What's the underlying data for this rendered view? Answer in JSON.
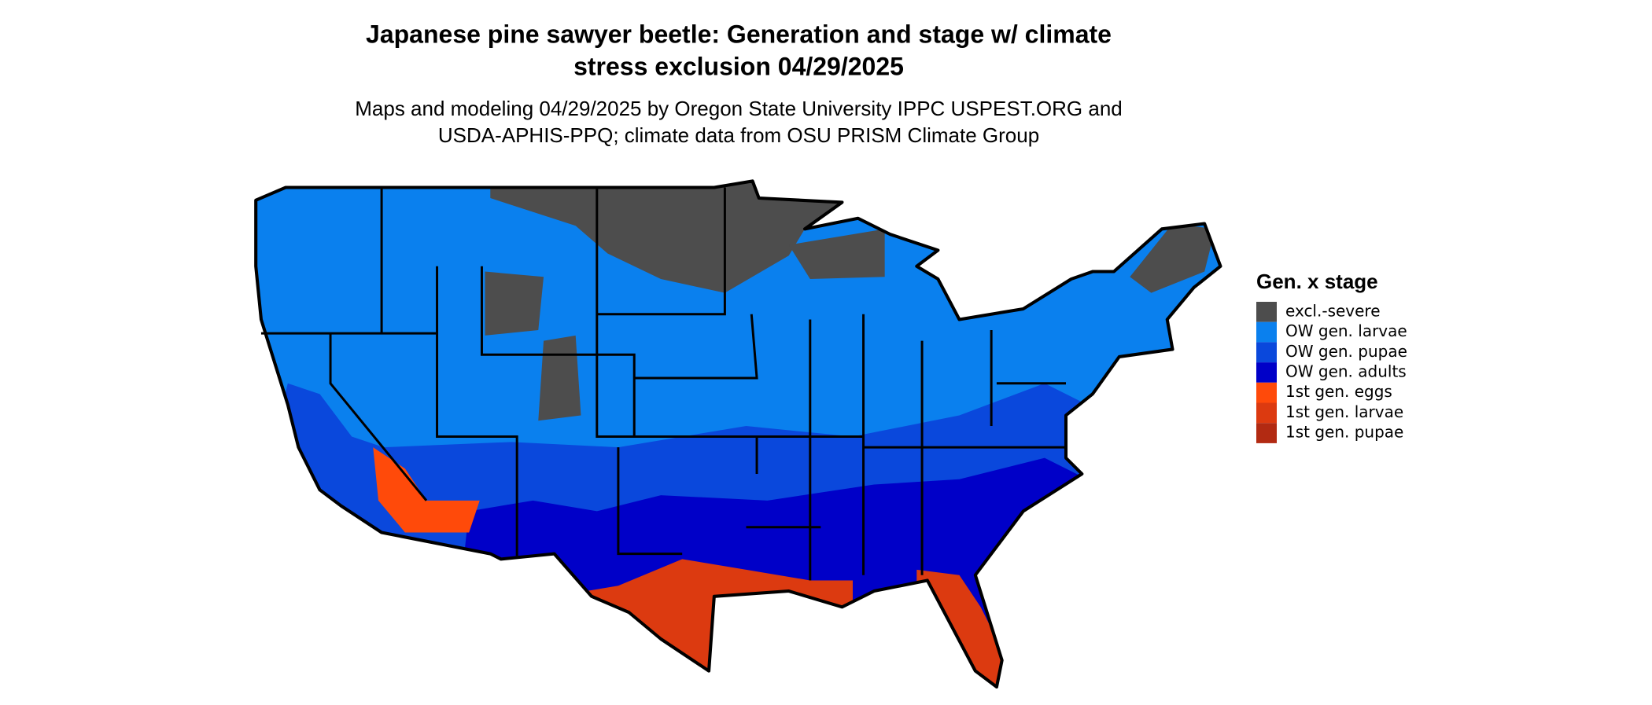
{
  "title": [
    "Japanese pine sawyer beetle: Generation and stage w/ climate",
    "stress exclusion 04/29/2025"
  ],
  "subtitle": [
    "Maps and modeling 04/29/2025 by Oregon State University IPPC USPEST.ORG and",
    "USDA-APHIS-PPQ; climate data from OSU PRISM Climate Group"
  ],
  "legend": {
    "title": "Gen. x stage",
    "items": [
      {
        "label": "excl.-severe",
        "color": "#4d4d4d"
      },
      {
        "label": "OW gen. larvae",
        "color": "#0a80ee"
      },
      {
        "label": "OW gen. pupae",
        "color": "#0a48dc"
      },
      {
        "label": "OW gen. adults",
        "color": "#0000c8"
      },
      {
        "label": "1st gen. eggs",
        "color": "#ff4a0a"
      },
      {
        "label": "1st gen. larvae",
        "color": "#dc3a10"
      },
      {
        "label": "1st gen. pupae",
        "color": "#b22a12"
      }
    ]
  }
}
